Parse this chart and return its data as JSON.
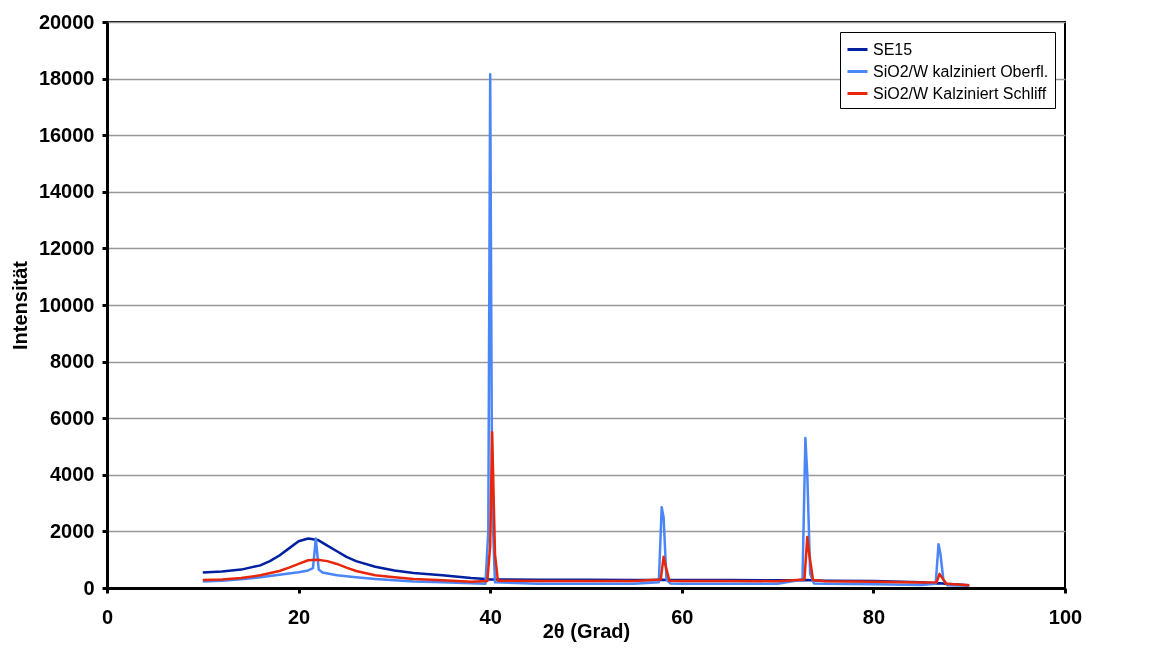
{
  "chart_data": {
    "type": "line",
    "xlabel": "2θ (Grad)",
    "ylabel": "Intensität",
    "xlim": [
      0,
      100
    ],
    "xticks": [
      0,
      20,
      40,
      60,
      80,
      100
    ],
    "ylim": [
      0,
      20000
    ],
    "yticks": [
      0,
      2000,
      4000,
      6000,
      8000,
      10000,
      12000,
      14000,
      16000,
      18000,
      20000
    ],
    "grid": "y",
    "legend": "top right",
    "series": [
      {
        "name": "SE15",
        "color": "#00209f",
        "x": [
          10,
          12,
          14,
          16,
          17,
          18,
          19,
          20,
          21,
          22,
          23,
          24,
          25,
          26,
          28,
          30,
          32,
          35,
          38,
          39.5,
          40,
          40.5,
          45,
          50,
          55,
          57.5,
          58,
          58.5,
          60,
          65,
          70,
          72.5,
          73,
          73.5,
          75,
          80,
          85,
          86.5,
          87,
          87.5,
          90
        ],
        "values": [
          550,
          580,
          650,
          800,
          950,
          1150,
          1400,
          1650,
          1750,
          1700,
          1500,
          1300,
          1100,
          950,
          750,
          620,
          530,
          450,
          350,
          320,
          300,
          300,
          290,
          290,
          280,
          280,
          290,
          280,
          280,
          280,
          270,
          270,
          280,
          270,
          260,
          250,
          200,
          160,
          170,
          150,
          100
        ]
      },
      {
        "name": "SiO2/W kalziniert Oberfl.",
        "color": "#4a86f7",
        "x": [
          10,
          12,
          14,
          16,
          18,
          20,
          21,
          21.5,
          21.8,
          22.1,
          22.5,
          24,
          26,
          28,
          30,
          32,
          35,
          38,
          39.5,
          39.8,
          40,
          40.2,
          40.5,
          45,
          50,
          55,
          57.6,
          57.9,
          58.1,
          58.4,
          58.8,
          60,
          65,
          70,
          72.6,
          72.9,
          73.1,
          73.4,
          73.8,
          75,
          80,
          85,
          86.5,
          86.8,
          87,
          87.3,
          87.7,
          90
        ],
        "values": [
          230,
          260,
          310,
          380,
          470,
          560,
          620,
          700,
          1750,
          650,
          550,
          450,
          380,
          320,
          270,
          230,
          200,
          170,
          150,
          2000,
          18150,
          3000,
          200,
          150,
          150,
          150,
          200,
          2850,
          2500,
          300,
          160,
          150,
          150,
          150,
          300,
          5300,
          4000,
          500,
          160,
          150,
          130,
          110,
          150,
          1550,
          1200,
          300,
          100,
          80
        ]
      },
      {
        "name": "SiO2/W Kalziniert Schliff",
        "color": "#e8260b",
        "x": [
          10,
          12,
          14,
          16,
          18,
          19,
          20,
          21,
          22,
          23,
          24,
          25,
          26,
          28,
          30,
          32,
          35,
          38,
          39.7,
          40,
          40.2,
          40.5,
          40.8,
          45,
          50,
          55,
          57.8,
          58.1,
          58.3,
          58.7,
          60,
          65,
          70,
          72.8,
          73.1,
          73.3,
          73.7,
          75,
          80,
          85,
          86.6,
          86.9,
          87.2,
          87.6,
          90
        ],
        "values": [
          280,
          300,
          350,
          450,
          600,
          720,
          850,
          980,
          1000,
          950,
          850,
          720,
          600,
          450,
          380,
          320,
          270,
          220,
          250,
          1500,
          5500,
          1200,
          260,
          250,
          250,
          250,
          300,
          1100,
          800,
          260,
          250,
          250,
          240,
          300,
          1800,
          1200,
          280,
          240,
          220,
          190,
          200,
          500,
          350,
          150,
          100
        ]
      }
    ]
  }
}
